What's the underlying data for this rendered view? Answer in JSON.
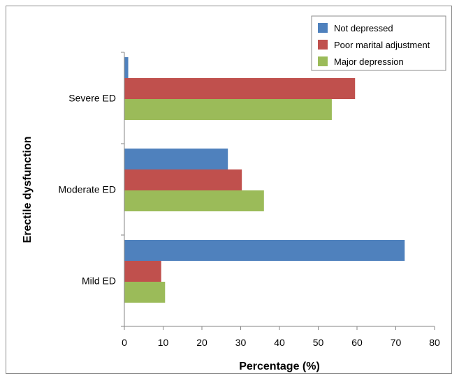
{
  "chart_data": {
    "type": "bar",
    "orientation": "horizontal",
    "categories": [
      "Severe ED",
      "Moderate ED",
      "Mild ED"
    ],
    "series": [
      {
        "name": "Not depressed",
        "color": "#4f81bd",
        "values": [
          1,
          26.7,
          72.3
        ]
      },
      {
        "name": "Poor marital adjustment",
        "color": "#c0504d",
        "values": [
          59.5,
          30.3,
          9.5
        ]
      },
      {
        "name": "Major depression",
        "color": "#9bbb59",
        "values": [
          53.5,
          36,
          10.5
        ]
      }
    ],
    "xlabel": "Percentage (%)",
    "ylabel": "Erectile dysfunction",
    "xlim": [
      0,
      80
    ],
    "xticks": [
      0,
      10,
      20,
      30,
      40,
      50,
      60,
      70,
      80
    ],
    "grid": false,
    "legend_position": "top-right"
  }
}
